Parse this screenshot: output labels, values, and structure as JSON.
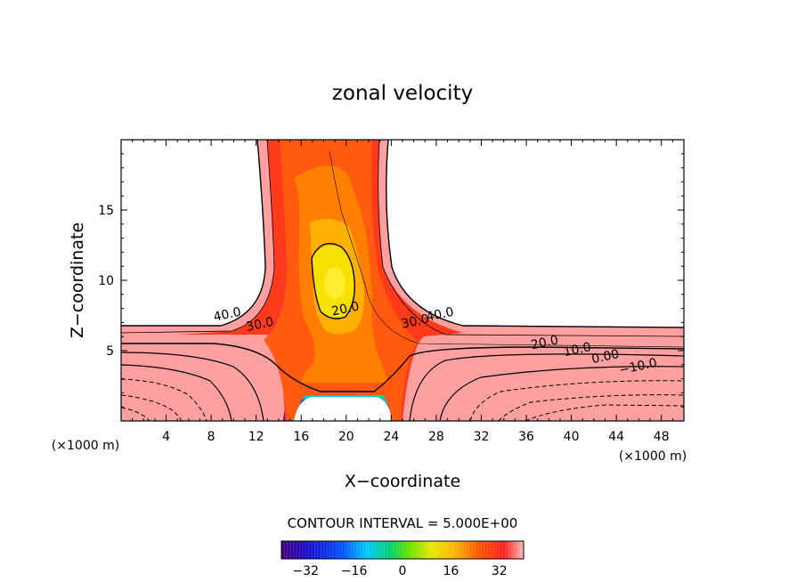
{
  "chart_data": {
    "type": "contour",
    "title": "zonal velocity",
    "xlabel": "X−coordinate",
    "ylabel": "Z−coordinate",
    "x_unit_left": "(×1000 m)",
    "x_unit_right": "(×1000 m)",
    "xlim": [
      0,
      50
    ],
    "ylim": [
      0,
      20
    ],
    "x_ticks": [
      4,
      8,
      12,
      16,
      20,
      24,
      28,
      32,
      36,
      40,
      44,
      48
    ],
    "y_ticks": [
      5,
      10,
      15
    ],
    "contour_interval_label": "CONTOUR INTERVAL = 5.000E+00",
    "contour_labels": [
      {
        "text": "40.0",
        "x": 9.5,
        "z": 7.3
      },
      {
        "text": "30.0",
        "x": 12.4,
        "z": 6.6
      },
      {
        "text": "20.0",
        "x": 20.0,
        "z": 7.7
      },
      {
        "text": "30.0",
        "x": 26.2,
        "z": 6.8
      },
      {
        "text": "40.0",
        "x": 28.4,
        "z": 7.3
      },
      {
        "text": "20.0",
        "x": 37.7,
        "z": 5.3
      },
      {
        "text": "10.0",
        "x": 40.6,
        "z": 4.8
      },
      {
        "text": "0.00",
        "x": 43.1,
        "z": 4.3
      },
      {
        "text": "−10.0",
        "x": 46.0,
        "z": 3.6
      }
    ],
    "colorbar": {
      "min": -40,
      "max": 40,
      "ticks": [
        -32,
        -16,
        0,
        16,
        32
      ],
      "tick_labels": [
        "−32",
        "−16",
        "0",
        "16",
        "32"
      ]
    }
  }
}
